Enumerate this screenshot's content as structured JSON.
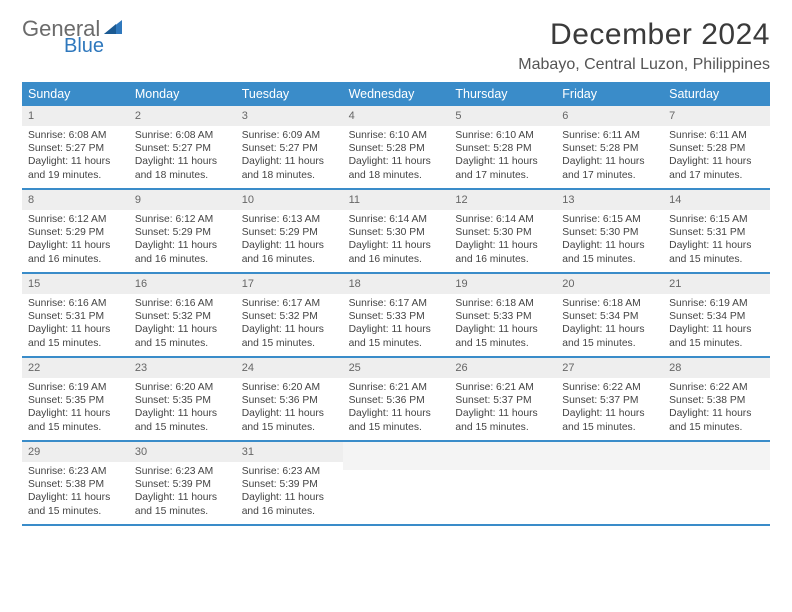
{
  "brand": {
    "part1": "General",
    "part2": "Blue"
  },
  "header": {
    "month": "December 2024",
    "location": "Mabayo, Central Luzon, Philippines"
  },
  "colors": {
    "accent": "#3a8cc9",
    "header_bg": "#3a8cc9",
    "daynum_bg": "#eeeeee",
    "text": "#444444",
    "bg": "#ffffff"
  },
  "columns": [
    "Sunday",
    "Monday",
    "Tuesday",
    "Wednesday",
    "Thursday",
    "Friday",
    "Saturday"
  ],
  "first_weekday": 0,
  "days": [
    {
      "n": 1,
      "sunrise": "6:08 AM",
      "sunset": "5:27 PM",
      "daylight": "11 hours and 19 minutes."
    },
    {
      "n": 2,
      "sunrise": "6:08 AM",
      "sunset": "5:27 PM",
      "daylight": "11 hours and 18 minutes."
    },
    {
      "n": 3,
      "sunrise": "6:09 AM",
      "sunset": "5:27 PM",
      "daylight": "11 hours and 18 minutes."
    },
    {
      "n": 4,
      "sunrise": "6:10 AM",
      "sunset": "5:28 PM",
      "daylight": "11 hours and 18 minutes."
    },
    {
      "n": 5,
      "sunrise": "6:10 AM",
      "sunset": "5:28 PM",
      "daylight": "11 hours and 17 minutes."
    },
    {
      "n": 6,
      "sunrise": "6:11 AM",
      "sunset": "5:28 PM",
      "daylight": "11 hours and 17 minutes."
    },
    {
      "n": 7,
      "sunrise": "6:11 AM",
      "sunset": "5:28 PM",
      "daylight": "11 hours and 17 minutes."
    },
    {
      "n": 8,
      "sunrise": "6:12 AM",
      "sunset": "5:29 PM",
      "daylight": "11 hours and 16 minutes."
    },
    {
      "n": 9,
      "sunrise": "6:12 AM",
      "sunset": "5:29 PM",
      "daylight": "11 hours and 16 minutes."
    },
    {
      "n": 10,
      "sunrise": "6:13 AM",
      "sunset": "5:29 PM",
      "daylight": "11 hours and 16 minutes."
    },
    {
      "n": 11,
      "sunrise": "6:14 AM",
      "sunset": "5:30 PM",
      "daylight": "11 hours and 16 minutes."
    },
    {
      "n": 12,
      "sunrise": "6:14 AM",
      "sunset": "5:30 PM",
      "daylight": "11 hours and 16 minutes."
    },
    {
      "n": 13,
      "sunrise": "6:15 AM",
      "sunset": "5:30 PM",
      "daylight": "11 hours and 15 minutes."
    },
    {
      "n": 14,
      "sunrise": "6:15 AM",
      "sunset": "5:31 PM",
      "daylight": "11 hours and 15 minutes."
    },
    {
      "n": 15,
      "sunrise": "6:16 AM",
      "sunset": "5:31 PM",
      "daylight": "11 hours and 15 minutes."
    },
    {
      "n": 16,
      "sunrise": "6:16 AM",
      "sunset": "5:32 PM",
      "daylight": "11 hours and 15 minutes."
    },
    {
      "n": 17,
      "sunrise": "6:17 AM",
      "sunset": "5:32 PM",
      "daylight": "11 hours and 15 minutes."
    },
    {
      "n": 18,
      "sunrise": "6:17 AM",
      "sunset": "5:33 PM",
      "daylight": "11 hours and 15 minutes."
    },
    {
      "n": 19,
      "sunrise": "6:18 AM",
      "sunset": "5:33 PM",
      "daylight": "11 hours and 15 minutes."
    },
    {
      "n": 20,
      "sunrise": "6:18 AM",
      "sunset": "5:34 PM",
      "daylight": "11 hours and 15 minutes."
    },
    {
      "n": 21,
      "sunrise": "6:19 AM",
      "sunset": "5:34 PM",
      "daylight": "11 hours and 15 minutes."
    },
    {
      "n": 22,
      "sunrise": "6:19 AM",
      "sunset": "5:35 PM",
      "daylight": "11 hours and 15 minutes."
    },
    {
      "n": 23,
      "sunrise": "6:20 AM",
      "sunset": "5:35 PM",
      "daylight": "11 hours and 15 minutes."
    },
    {
      "n": 24,
      "sunrise": "6:20 AM",
      "sunset": "5:36 PM",
      "daylight": "11 hours and 15 minutes."
    },
    {
      "n": 25,
      "sunrise": "6:21 AM",
      "sunset": "5:36 PM",
      "daylight": "11 hours and 15 minutes."
    },
    {
      "n": 26,
      "sunrise": "6:21 AM",
      "sunset": "5:37 PM",
      "daylight": "11 hours and 15 minutes."
    },
    {
      "n": 27,
      "sunrise": "6:22 AM",
      "sunset": "5:37 PM",
      "daylight": "11 hours and 15 minutes."
    },
    {
      "n": 28,
      "sunrise": "6:22 AM",
      "sunset": "5:38 PM",
      "daylight": "11 hours and 15 minutes."
    },
    {
      "n": 29,
      "sunrise": "6:23 AM",
      "sunset": "5:38 PM",
      "daylight": "11 hours and 15 minutes."
    },
    {
      "n": 30,
      "sunrise": "6:23 AM",
      "sunset": "5:39 PM",
      "daylight": "11 hours and 15 minutes."
    },
    {
      "n": 31,
      "sunrise": "6:23 AM",
      "sunset": "5:39 PM",
      "daylight": "11 hours and 16 minutes."
    }
  ],
  "labels": {
    "sunrise": "Sunrise:",
    "sunset": "Sunset:",
    "daylight": "Daylight:"
  }
}
